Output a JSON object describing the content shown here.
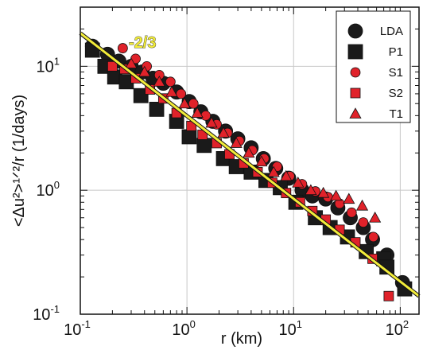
{
  "chart_data": {
    "type": "scatter",
    "title": "",
    "xlabel": "r  (km)",
    "ylabel": "<Δu²>¹ᐟ²/r    (1/days)",
    "xscale": "log",
    "yscale": "log",
    "xlim": [
      0.1,
      150
    ],
    "ylim": [
      0.1,
      30
    ],
    "grid": true,
    "legend_position": "top-right",
    "x_ticks": [
      {
        "value": 0.1,
        "label": "10",
        "exp": "-1"
      },
      {
        "value": 1,
        "label": "10",
        "exp": "0"
      },
      {
        "value": 10,
        "label": "10",
        "exp": "1"
      },
      {
        "value": 100,
        "label": "10",
        "exp": "2"
      }
    ],
    "y_ticks": [
      {
        "value": 0.1,
        "label": "10",
        "exp": "-1"
      },
      {
        "value": 1,
        "label": "10",
        "exp": "0"
      },
      {
        "value": 10,
        "label": "10",
        "exp": "1"
      }
    ],
    "fit_line": {
      "label": "-2/3",
      "x": [
        0.1,
        150
      ],
      "y": [
        18.5,
        0.14
      ],
      "color": "#f2ec3a"
    },
    "series": [
      {
        "name": "LDA",
        "marker": "circle",
        "color": "#1a1a1a",
        "size": "large",
        "points": [
          [
            0.13,
            14.5
          ],
          [
            0.18,
            12.5
          ],
          [
            0.23,
            11
          ],
          [
            0.3,
            10
          ],
          [
            0.38,
            9
          ],
          [
            0.48,
            8
          ],
          [
            0.6,
            7.3
          ],
          [
            0.8,
            6.2
          ],
          [
            1.05,
            5.2
          ],
          [
            1.35,
            4.3
          ],
          [
            1.75,
            3.6
          ],
          [
            2.3,
            3.0
          ],
          [
            3.0,
            2.6
          ],
          [
            4.0,
            2.2
          ],
          [
            5.2,
            1.8
          ],
          [
            6.8,
            1.5
          ],
          [
            9.0,
            1.25
          ],
          [
            12,
            1.0
          ],
          [
            15,
            0.9
          ],
          [
            20,
            0.85
          ],
          [
            26,
            0.72
          ],
          [
            34,
            0.6
          ],
          [
            45,
            0.5
          ],
          [
            55,
            0.4
          ],
          [
            75,
            0.3
          ],
          [
            105,
            0.18
          ]
        ]
      },
      {
        "name": "P1",
        "marker": "square",
        "color": "#1a1a1a",
        "size": "large",
        "points": [
          [
            0.13,
            13.5
          ],
          [
            0.17,
            10
          ],
          [
            0.21,
            8.2
          ],
          [
            0.27,
            7.5
          ],
          [
            0.37,
            5.8
          ],
          [
            0.52,
            4.5
          ],
          [
            0.8,
            3.6
          ],
          [
            1.05,
            2.7
          ],
          [
            1.45,
            2.3
          ],
          [
            2.2,
            1.8
          ],
          [
            2.9,
            1.55
          ],
          [
            4.0,
            1.4
          ],
          [
            5.5,
            1.2
          ],
          [
            7.5,
            1.05
          ],
          [
            10.5,
            0.8
          ],
          [
            16,
            0.6
          ],
          [
            22,
            0.5
          ],
          [
            32,
            0.42
          ],
          [
            48,
            0.32
          ],
          [
            70,
            0.28
          ],
          [
            75,
            0.24
          ],
          [
            110,
            0.16
          ]
        ]
      },
      {
        "name": "S1",
        "marker": "circle",
        "color": "#e0222a",
        "size": "small",
        "points": [
          [
            0.25,
            14
          ],
          [
            0.33,
            11.5
          ],
          [
            0.42,
            10
          ],
          [
            0.55,
            8.5
          ],
          [
            0.7,
            7.5
          ],
          [
            0.88,
            6
          ],
          [
            1.15,
            5
          ],
          [
            1.5,
            4
          ],
          [
            1.9,
            3.4
          ],
          [
            2.4,
            2.9
          ],
          [
            3.1,
            2.5
          ],
          [
            4.1,
            2.1
          ],
          [
            5.3,
            1.8
          ],
          [
            7,
            1.55
          ],
          [
            9.2,
            1.3
          ],
          [
            12,
            1.12
          ],
          [
            16,
            0.98
          ],
          [
            21,
            0.88
          ],
          [
            27,
            0.78
          ],
          [
            35,
            0.66
          ],
          [
            45,
            0.55
          ],
          [
            56,
            0.42
          ]
        ]
      },
      {
        "name": "S2",
        "marker": "square",
        "color": "#e0222a",
        "size": "small",
        "points": [
          [
            0.2,
            10
          ],
          [
            0.26,
            9.5
          ],
          [
            0.33,
            8
          ],
          [
            0.45,
            6.5
          ],
          [
            0.6,
            5.5
          ],
          [
            0.8,
            4.2
          ],
          [
            1.1,
            3.3
          ],
          [
            1.4,
            2.8
          ],
          [
            1.9,
            2.4
          ],
          [
            2.5,
            1.95
          ],
          [
            3.4,
            1.65
          ],
          [
            4.6,
            1.4
          ],
          [
            6.3,
            1.15
          ],
          [
            8.5,
            0.95
          ],
          [
            11.5,
            0.8
          ],
          [
            15,
            0.68
          ],
          [
            20,
            0.58
          ],
          [
            27,
            0.48
          ],
          [
            38,
            0.38
          ],
          [
            55,
            0.28
          ],
          [
            78,
            0.14
          ]
        ]
      },
      {
        "name": "T1",
        "marker": "triangle",
        "color": "#e0222a",
        "size": "small",
        "points": [
          [
            0.3,
            10.5
          ],
          [
            0.4,
            9
          ],
          [
            0.55,
            7.5
          ],
          [
            0.72,
            6.2
          ],
          [
            0.95,
            5
          ],
          [
            1.25,
            4.2
          ],
          [
            1.7,
            3.5
          ],
          [
            2.2,
            2.9
          ],
          [
            2.9,
            2.4
          ],
          [
            3.8,
            2.0
          ],
          [
            5.0,
            1.7
          ],
          [
            6.5,
            1.4
          ],
          [
            8.5,
            1.3
          ],
          [
            11,
            1.15
          ],
          [
            14.5,
            1.0
          ],
          [
            19,
            0.95
          ],
          [
            25,
            0.9
          ],
          [
            33,
            0.85
          ],
          [
            44,
            0.75
          ],
          [
            58,
            0.6
          ]
        ]
      }
    ]
  }
}
